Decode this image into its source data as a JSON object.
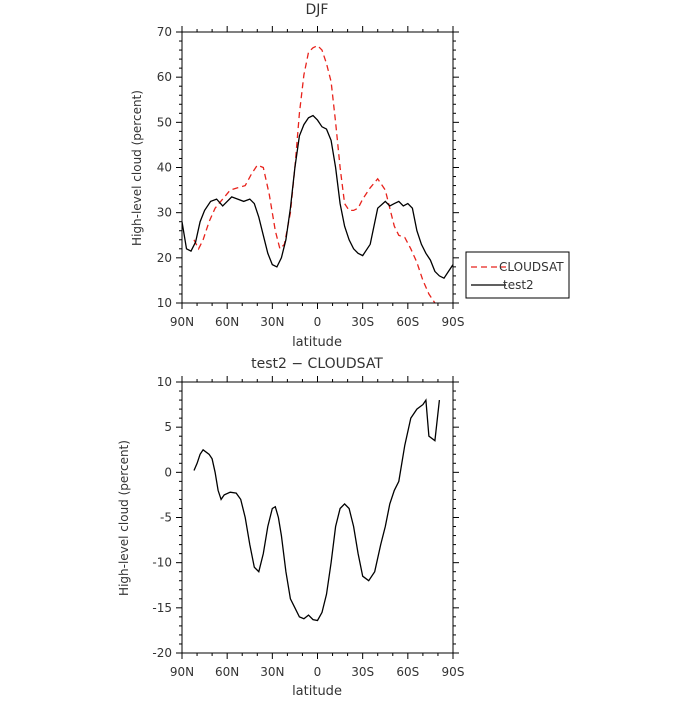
{
  "chart_data": [
    {
      "type": "line",
      "title": "DJF",
      "xlabel": "latitude",
      "ylabel": "High-level cloud (percent)",
      "x_tick_labels": [
        "90N",
        "60N",
        "30N",
        "0",
        "30S",
        "60S",
        "90S"
      ],
      "x_tick_values": [
        -90,
        -60,
        -30,
        0,
        30,
        60,
        90
      ],
      "xlim": [
        -90,
        90
      ],
      "ylim": [
        10,
        70
      ],
      "y_ticks": [
        10,
        20,
        30,
        40,
        50,
        60,
        70
      ],
      "legend_position": "right",
      "series": [
        {
          "name": "CLOUDSAT",
          "color": "#e8231c",
          "dash": "dashed",
          "x": [
            -82,
            -79,
            -76,
            -72,
            -68,
            -63,
            -58,
            -53,
            -48,
            -44,
            -40,
            -36,
            -32,
            -28,
            -25,
            -22,
            -18,
            -15,
            -12,
            -9,
            -6,
            -3,
            0,
            3,
            6,
            9,
            12,
            15,
            18,
            21,
            24,
            27,
            30,
            35,
            40,
            45,
            48,
            51,
            54,
            58,
            62,
            66,
            70,
            74,
            78,
            80
          ],
          "y": [
            24,
            22,
            24,
            28,
            31,
            33,
            35,
            35.5,
            36,
            38.5,
            40.5,
            40,
            34,
            26,
            22,
            23,
            30,
            40,
            52,
            60.5,
            65.5,
            66.5,
            67,
            66,
            63,
            59,
            50,
            40,
            32,
            30.5,
            30.5,
            31,
            33,
            35.5,
            37.5,
            35,
            31,
            27,
            25,
            24.5,
            22,
            19,
            15,
            12,
            10,
            9
          ]
        },
        {
          "name": "test2",
          "color": "#000000",
          "dash": "solid",
          "x": [
            -90,
            -87,
            -84,
            -81,
            -78,
            -75,
            -71,
            -67,
            -63,
            -60,
            -57,
            -53,
            -49,
            -45,
            -42,
            -39,
            -36,
            -33,
            -30,
            -27,
            -24,
            -21,
            -18,
            -15,
            -12,
            -9,
            -6,
            -3,
            0,
            3,
            6,
            9,
            12,
            15,
            18,
            21,
            24,
            27,
            30,
            35,
            40,
            45,
            48,
            51,
            54,
            57,
            60,
            63,
            66,
            69,
            72,
            75,
            78,
            81,
            84,
            87,
            90
          ],
          "y": [
            28,
            22,
            21.5,
            23.5,
            28,
            30.5,
            32.5,
            33,
            31.5,
            32.5,
            33.5,
            33,
            32.5,
            33,
            32,
            29,
            25,
            21,
            18.5,
            18,
            20,
            24,
            31,
            40,
            47,
            49.5,
            51,
            51.5,
            50.5,
            49,
            48.5,
            46,
            40,
            32,
            27,
            24,
            22,
            21,
            20.5,
            23,
            31,
            32.5,
            31.5,
            32,
            32.5,
            31.5,
            32,
            31,
            26,
            23,
            21,
            19.5,
            17,
            16,
            15.5,
            17,
            18.5
          ]
        }
      ]
    },
    {
      "type": "line",
      "title": "test2 − CLOUDSAT",
      "xlabel": "latitude",
      "ylabel": "High-level cloud (percent)",
      "x_tick_labels": [
        "90N",
        "60N",
        "30N",
        "0",
        "30S",
        "60S",
        "90S"
      ],
      "x_tick_values": [
        -90,
        -60,
        -30,
        0,
        30,
        60,
        90
      ],
      "xlim": [
        -90,
        90
      ],
      "ylim": [
        -20,
        10
      ],
      "y_ticks": [
        -20,
        -15,
        -10,
        -5,
        0,
        5,
        10
      ],
      "series": [
        {
          "color": "#000000",
          "dash": "solid",
          "x": [
            -82,
            -80,
            -78,
            -76,
            -72,
            -70,
            -68,
            -66,
            -64,
            -62,
            -58,
            -54,
            -51,
            -48,
            -45,
            -42,
            -39,
            -36,
            -33,
            -30,
            -28,
            -26,
            -24,
            -21,
            -18,
            -15,
            -12,
            -9,
            -6,
            -3,
            0,
            3,
            6,
            9,
            12,
            15,
            18,
            21,
            24,
            27,
            30,
            34,
            38,
            42,
            45,
            48,
            51,
            54,
            58,
            62,
            66,
            70,
            72,
            74,
            78,
            81
          ],
          "y": [
            0.2,
            1,
            2,
            2.5,
            2,
            1.5,
            0,
            -2,
            -3,
            -2.5,
            -2.2,
            -2.3,
            -3,
            -5,
            -8,
            -10.5,
            -11,
            -9,
            -6,
            -4,
            -3.8,
            -5,
            -7,
            -11,
            -14,
            -15,
            -16,
            -16.2,
            -15.8,
            -16.3,
            -16.4,
            -15.5,
            -13.5,
            -10,
            -6,
            -4,
            -3.5,
            -4,
            -6,
            -9,
            -11.5,
            -12,
            -11,
            -8,
            -6,
            -3.5,
            -2,
            -1,
            3,
            6,
            7,
            7.5,
            8,
            4,
            3.5,
            8
          ]
        }
      ]
    }
  ]
}
